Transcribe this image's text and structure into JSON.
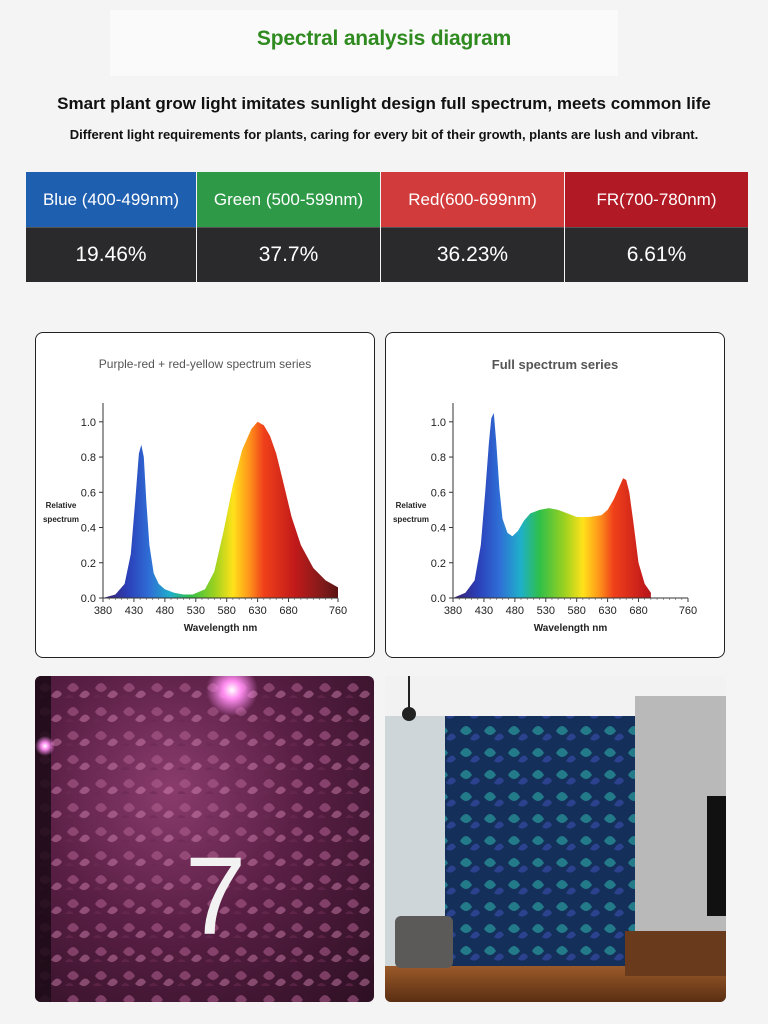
{
  "header": {
    "title": "Spectral analysis diagram",
    "headline": "Smart plant grow light imitates sunlight design full spectrum, meets common life",
    "subline": "Different light requirements for plants, caring for every bit of their growth, plants are lush and vibrant."
  },
  "ratios": [
    {
      "label": "Blue (400-499nm)",
      "value": "19.46%",
      "color": "#1f5fb0"
    },
    {
      "label": "Green (500-599nm)",
      "value": "37.7%",
      "color": "#2e9a48"
    },
    {
      "label": "Red(600-699nm)",
      "value": "36.23%",
      "color": "#d23b3b"
    },
    {
      "label": "FR(700-780nm)",
      "value": "6.61%",
      "color": "#b11a24"
    }
  ],
  "chart_data": [
    {
      "type": "area",
      "title": "Purple-red + red-yellow spectrum series",
      "xlabel": "Wavelength nm",
      "ylabel": "Relative spectrum",
      "xlim": [
        380,
        760
      ],
      "ylim": [
        0,
        1.05
      ],
      "x_ticks": [
        "380",
        "430",
        "480",
        "530",
        "580",
        "630",
        "680",
        "760"
      ],
      "y_ticks": [
        "0.0",
        "0.2",
        "0.4",
        "0.6",
        "0.8",
        "1.0"
      ],
      "x": [
        380,
        400,
        415,
        425,
        432,
        438,
        442,
        446,
        450,
        455,
        462,
        470,
        480,
        495,
        510,
        525,
        545,
        560,
        575,
        590,
        605,
        620,
        630,
        640,
        650,
        660,
        670,
        685,
        700,
        720,
        740,
        760
      ],
      "values": [
        0,
        0.02,
        0.08,
        0.25,
        0.55,
        0.82,
        0.87,
        0.8,
        0.55,
        0.3,
        0.14,
        0.08,
        0.05,
        0.03,
        0.02,
        0.02,
        0.05,
        0.15,
        0.38,
        0.64,
        0.84,
        0.96,
        1.0,
        0.98,
        0.92,
        0.82,
        0.68,
        0.46,
        0.3,
        0.17,
        0.1,
        0.06
      ]
    },
    {
      "type": "area",
      "title": "Full spectrum series",
      "xlabel": "Wavelength nm",
      "ylabel": "Relative spectrum",
      "xlim": [
        380,
        760
      ],
      "ylim": [
        0,
        1.05
      ],
      "x_ticks": [
        "380",
        "430",
        "480",
        "530",
        "580",
        "630",
        "680",
        "760"
      ],
      "y_ticks": [
        "0.0",
        "0.2",
        "0.4",
        "0.6",
        "0.8",
        "1.0"
      ],
      "x": [
        380,
        400,
        415,
        425,
        432,
        438,
        442,
        446,
        450,
        455,
        460,
        468,
        476,
        485,
        495,
        505,
        520,
        535,
        550,
        565,
        580,
        600,
        620,
        630,
        640,
        650,
        655,
        660,
        665,
        672,
        680,
        690,
        700
      ],
      "values": [
        0,
        0.03,
        0.1,
        0.3,
        0.6,
        0.88,
        1.02,
        1.05,
        0.88,
        0.62,
        0.45,
        0.37,
        0.35,
        0.38,
        0.44,
        0.48,
        0.5,
        0.51,
        0.5,
        0.48,
        0.46,
        0.46,
        0.47,
        0.5,
        0.56,
        0.64,
        0.68,
        0.67,
        0.6,
        0.42,
        0.2,
        0.08,
        0.03
      ]
    }
  ],
  "photos": [
    {
      "caption": "7"
    },
    {
      "caption": ""
    }
  ]
}
